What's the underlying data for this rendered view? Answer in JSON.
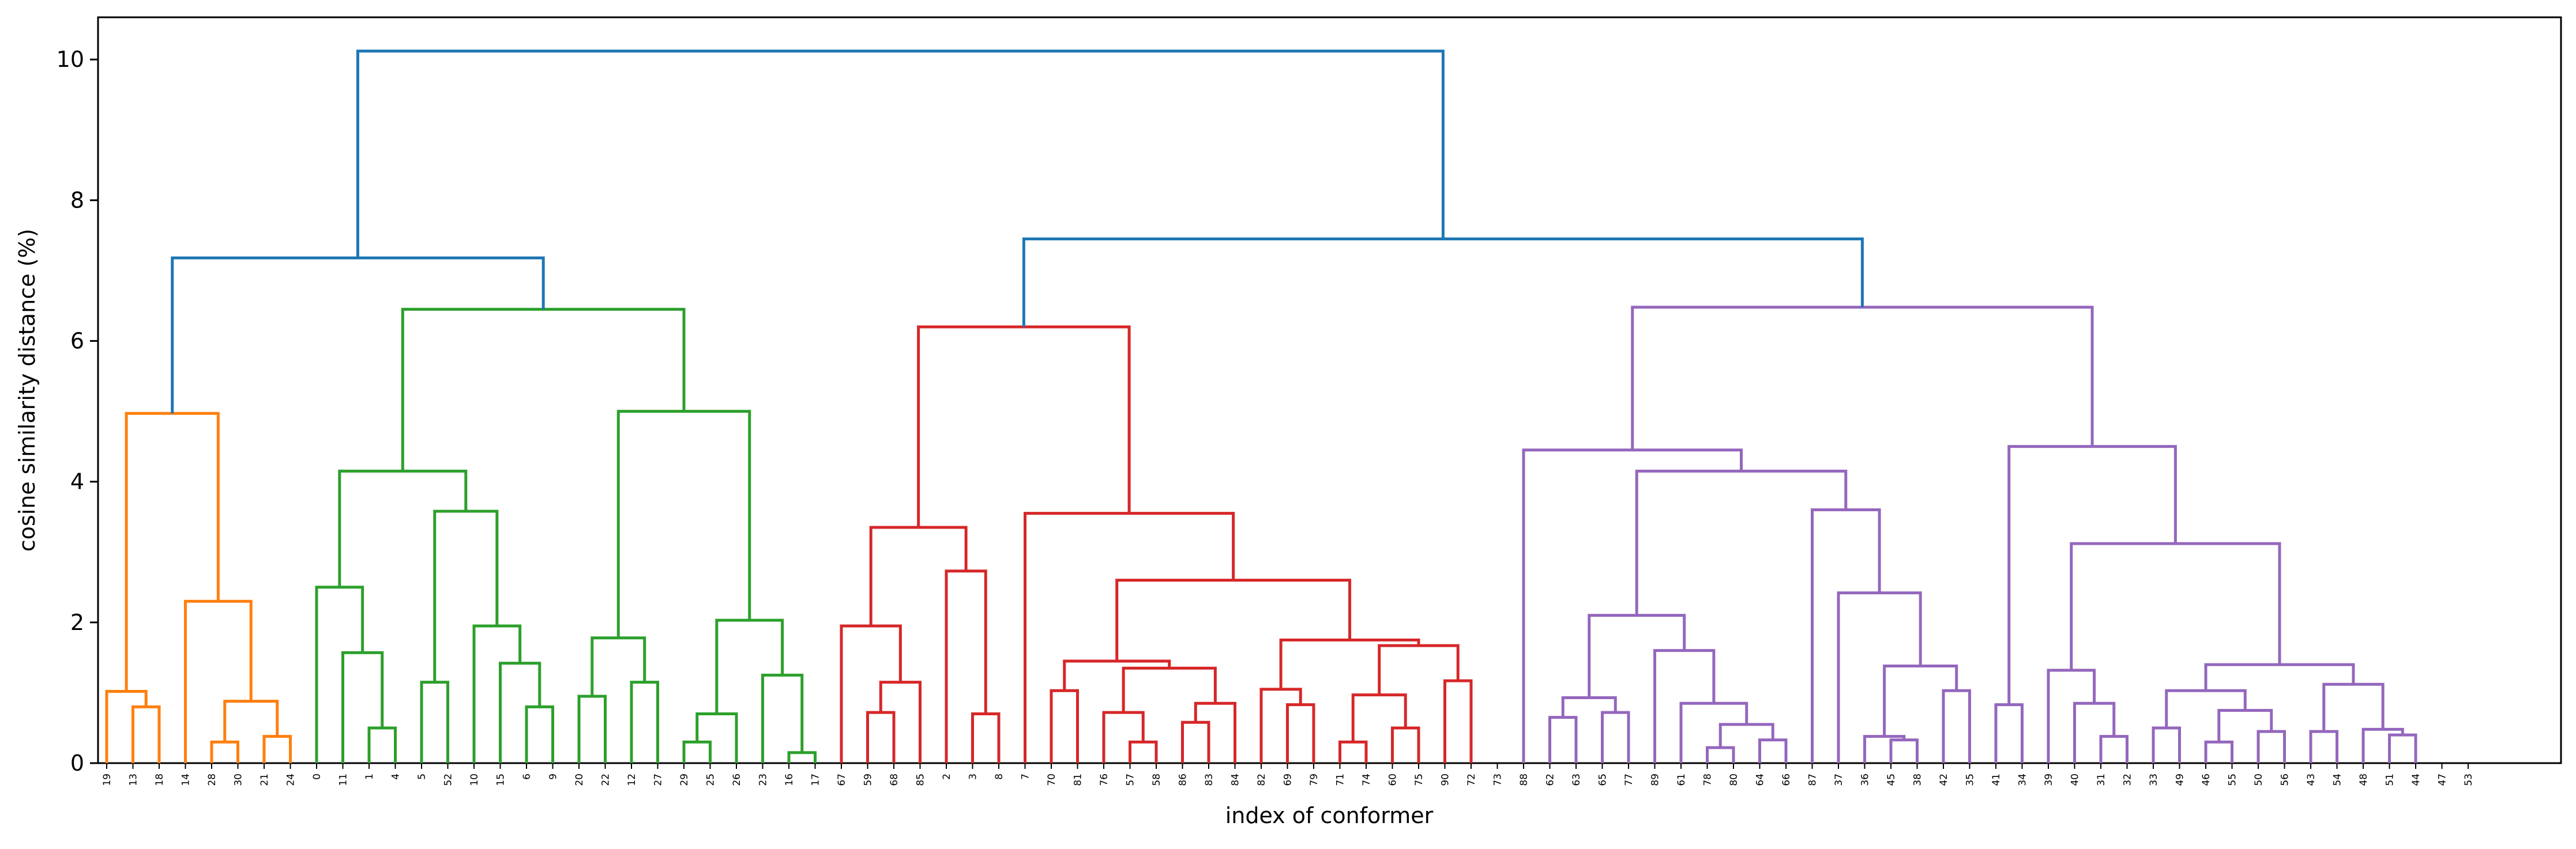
{
  "chart_data": {
    "type": "dendrogram",
    "title": "",
    "xlabel": "index of conformer",
    "ylabel": "cosine similarity distance (%)",
    "ylim": [
      0,
      10.6
    ],
    "yticks": [
      0,
      2,
      4,
      6,
      8,
      10
    ],
    "grid": false,
    "colors": {
      "C0": "#1f77b4",
      "C1": "#ff7f0e",
      "C2": "#2ca02c",
      "C3": "#d62728",
      "C4": "#9467bd"
    },
    "leaves": [
      "19",
      "13",
      "18",
      "14",
      "28",
      "30",
      "21",
      "24",
      "0",
      "11",
      "1",
      "4",
      "5",
      "52",
      "10",
      "15",
      "6",
      "9",
      "20",
      "22",
      "12",
      "27",
      "29",
      "25",
      "26",
      "23",
      "16",
      "17",
      "67",
      "59",
      "68",
      "85",
      "2",
      "3",
      "8",
      "7",
      "70",
      "81",
      "76",
      "57",
      "58",
      "86",
      "83",
      "84",
      "82",
      "69",
      "79",
      "71",
      "74",
      "60",
      "75",
      "90",
      "72",
      "73",
      "88",
      "62",
      "63",
      "65",
      "77",
      "89",
      "61",
      "78",
      "80",
      "64",
      "66",
      "87",
      "37",
      "36",
      "45",
      "38",
      "42",
      "35",
      "41",
      "34",
      "39",
      "40",
      "31",
      "32",
      "33",
      "49",
      "46",
      "55",
      "50",
      "56",
      "43",
      "54",
      "48",
      "51",
      "44",
      "47",
      "53"
    ],
    "merges": [
      {
        "a": 1,
        "b": 2,
        "h": 0.8,
        "c": "C1"
      },
      {
        "a": 0,
        "b": "m0",
        "h": 1.02,
        "c": "C1"
      },
      {
        "a": 4,
        "b": 5,
        "h": 0.3,
        "c": "C1"
      },
      {
        "a": "m2",
        "b": 6,
        "h": 0.88,
        "c": "C1"
      },
      {
        "a": 6,
        "b": 7,
        "h": 0.38,
        "c": "C1"
      },
      {
        "a": 4,
        "b": 6,
        "h": 0.88,
        "c": "C1",
        "la": "m2",
        "lb": "m4"
      },
      {
        "a": 3,
        "b": "m5",
        "h": 2.3,
        "c": "C1"
      },
      {
        "a": "m1",
        "b": "m6",
        "h": 4.97,
        "c": "C1"
      },
      {
        "a": 10,
        "b": 11,
        "h": 0.5,
        "c": "C2"
      },
      {
        "a": 9,
        "b": "m8",
        "h": 1.57,
        "c": "C2"
      },
      {
        "a": 8,
        "b": "m9",
        "h": 2.5,
        "c": "C2"
      },
      {
        "a": 12,
        "b": 13,
        "h": 1.15,
        "c": "C2"
      },
      {
        "a": 16,
        "b": 17,
        "h": 0.8,
        "c": "C2"
      },
      {
        "a": 15,
        "b": "m12",
        "h": 1.42,
        "c": "C2"
      },
      {
        "a": 14,
        "b": "m13",
        "h": 1.95,
        "c": "C2"
      },
      {
        "a": "m11",
        "b": "m14",
        "h": 3.58,
        "c": "C2"
      },
      {
        "a": "m10",
        "b": "m15",
        "h": 4.15,
        "c": "C2"
      },
      {
        "a": 20,
        "b": 21,
        "h": 1.15,
        "c": "C2"
      },
      {
        "a": 19,
        "b": "m17",
        "h": 1.78,
        "c": "C2"
      },
      {
        "a": 18,
        "b": "m18",
        "h": 1.78,
        "c": "C2",
        "skip": true
      },
      {
        "a": 24,
        "b": 25,
        "h": 0.3,
        "c": "C2"
      },
      {
        "a": 23,
        "b": "m20",
        "h": 0.7,
        "c": "C2"
      },
      {
        "a": 27,
        "b": 28,
        "h": 0.15,
        "c": "C2"
      },
      {
        "a": 26,
        "b": "m22",
        "h": 1.25,
        "c": "C2"
      },
      {
        "a": "m21",
        "b": "m23",
        "h": 2.03,
        "c": "C2"
      },
      {
        "a": "m19",
        "b": "m24",
        "h": 5.0,
        "c": "C2"
      },
      {
        "a": "m16",
        "b": "m25",
        "h": 6.45,
        "c": "C2"
      }
    ]
  },
  "ui": {
    "ytick_labels": [
      "0",
      "2",
      "4",
      "6",
      "8",
      "10"
    ]
  }
}
